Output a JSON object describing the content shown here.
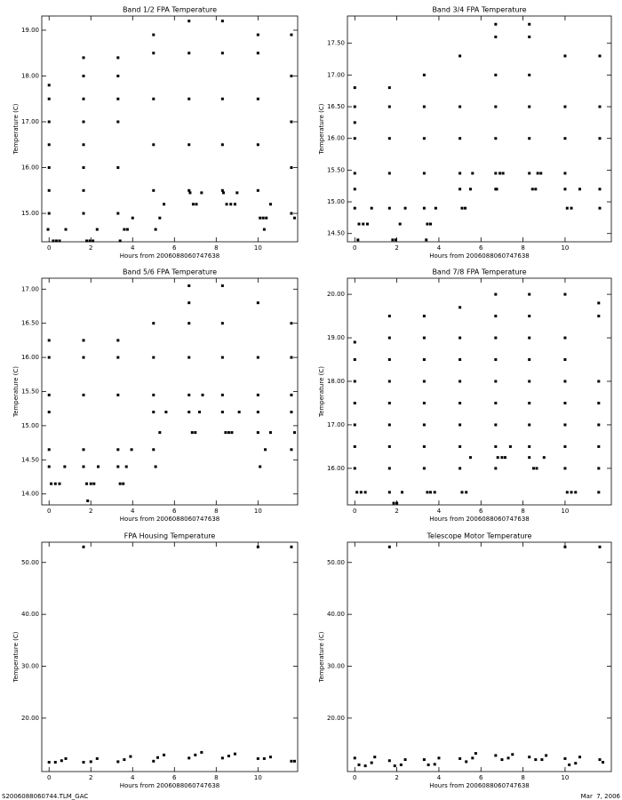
{
  "chart_data": [
    {
      "type": "scatter",
      "title": "Band 1/2 FPA Temperature",
      "xlabel": "Hours from 2006088060747638",
      "ylabel": "Temperature (C)",
      "xlim": [
        -0.35,
        11.9
      ],
      "ylim": [
        14.38,
        19.31
      ],
      "xticks": [
        0,
        2,
        4,
        6,
        8,
        10
      ],
      "yticks": [
        {
          "value": 15,
          "label": "15.00"
        },
        {
          "value": 16,
          "label": "16.00"
        },
        {
          "value": 17,
          "label": "17.00"
        },
        {
          "value": 18,
          "label": "18.00"
        },
        {
          "value": 19,
          "label": "19.00"
        }
      ],
      "series": [
        {
          "color": "#000000",
          "x": [
            0,
            0,
            0,
            0,
            0,
            0,
            0,
            0.2,
            0.35,
            0.5,
            -0.05,
            0.8,
            1.65,
            1.65,
            1.65,
            1.65,
            1.65,
            1.65,
            1.65,
            1.65,
            1.8,
            1.95,
            2.1,
            2.3,
            3.3,
            3.3,
            3.3,
            3.3,
            3.3,
            3.3,
            3.4,
            3.6,
            3.75,
            4.0,
            5,
            5,
            5,
            5,
            5,
            5.1,
            5.3,
            5.5,
            6.7,
            6.7,
            6.7,
            6.7,
            6.7,
            6.9,
            7.05,
            6.75,
            7.3,
            8.3,
            8.3,
            8.3,
            8.3,
            8.3,
            8.5,
            8.7,
            8.9,
            8.35,
            9.0,
            10,
            10,
            10,
            10,
            10,
            10.1,
            10.25,
            10.4,
            10.3,
            10.6,
            11.6,
            11.6,
            11.6,
            11.6,
            11.6,
            11.75
          ],
          "y": [
            15,
            15.5,
            16,
            16.5,
            17,
            17.5,
            17.8,
            14.4,
            14.4,
            14.4,
            14.65,
            14.65,
            15,
            15.5,
            16,
            16.5,
            17,
            17.5,
            18,
            18.4,
            14.4,
            14.4,
            14.4,
            14.65,
            15,
            16,
            17,
            17.5,
            18,
            18.4,
            14.4,
            14.65,
            14.65,
            14.9,
            15.5,
            16.5,
            17.5,
            18.5,
            18.9,
            14.65,
            14.9,
            15.2,
            15.5,
            16.5,
            17.5,
            18.5,
            19.2,
            15.2,
            15.2,
            15.45,
            15.45,
            15.5,
            16.5,
            17.5,
            18.5,
            19.2,
            15.2,
            15.2,
            15.2,
            15.45,
            15.45,
            15.5,
            16.5,
            17.5,
            18.5,
            18.9,
            14.9,
            14.9,
            14.9,
            14.65,
            15.2,
            15,
            16,
            17,
            18,
            18.9,
            14.9
          ]
        }
      ]
    },
    {
      "type": "scatter",
      "title": "Band 3/4 FPA Temperature",
      "xlabel": "Hours from 2006088060747638",
      "ylabel": "Temperature (C)",
      "xlim": [
        -0.35,
        12.2
      ],
      "ylim": [
        14.37,
        17.93
      ],
      "xticks": [
        0,
        2,
        4,
        6,
        8,
        10
      ],
      "yticks": [
        {
          "value": 14.5,
          "label": "14.50"
        },
        {
          "value": 15,
          "label": "15.00"
        },
        {
          "value": 15.5,
          "label": "15.50"
        },
        {
          "value": 16,
          "label": "16.00"
        },
        {
          "value": 16.5,
          "label": "16.50"
        },
        {
          "value": 17,
          "label": "17.00"
        },
        {
          "value": 17.5,
          "label": "17.50"
        }
      ],
      "series": [
        {
          "color": "#000000",
          "x": [
            0,
            0,
            0,
            0,
            0,
            0,
            0,
            0.2,
            0.4,
            0.6,
            0.15,
            0.8,
            1.65,
            1.65,
            1.65,
            1.65,
            1.65,
            1.8,
            1.95,
            2.15,
            2.4,
            3.3,
            3.3,
            3.3,
            3.3,
            3.3,
            3.45,
            3.6,
            3.4,
            3.85,
            5,
            5,
            5,
            5,
            5,
            5.1,
            5.25,
            5.5,
            5.6,
            6.7,
            6.7,
            6.7,
            6.7,
            6.7,
            6.7,
            6.7,
            6.9,
            7.05,
            6.75,
            8.3,
            8.3,
            8.3,
            8.3,
            8.3,
            8.3,
            8.45,
            8.6,
            8.7,
            8.85,
            10,
            10,
            10,
            10,
            10,
            10.1,
            10.3,
            10.7,
            11.65,
            11.65,
            11.65,
            11.65,
            11.65
          ],
          "y": [
            14.9,
            15.2,
            15.45,
            16,
            16.25,
            16.5,
            16.8,
            14.65,
            14.65,
            14.65,
            14.4,
            14.9,
            14.9,
            15.45,
            16,
            16.5,
            16.8,
            14.4,
            14.4,
            14.65,
            14.9,
            14.9,
            15.45,
            16,
            16.5,
            17,
            14.65,
            14.65,
            14.4,
            14.9,
            15.2,
            15.45,
            16,
            16.5,
            17.3,
            14.9,
            14.9,
            15.2,
            15.45,
            15.2,
            15.45,
            16,
            16.5,
            17,
            17.6,
            17.8,
            15.45,
            15.45,
            15.2,
            15.45,
            16,
            16.5,
            17,
            17.6,
            17.8,
            15.2,
            15.2,
            15.45,
            15.45,
            15.2,
            15.45,
            16,
            16.5,
            17.3,
            14.9,
            14.9,
            15.2,
            14.9,
            15.2,
            16,
            16.5,
            17.3
          ]
        }
      ]
    },
    {
      "type": "scatter",
      "title": "Band 5/6 FPA Temperature",
      "xlabel": "Hours from 2006088060747638",
      "ylabel": "Temperature (C)",
      "xlim": [
        -0.35,
        11.9
      ],
      "ylim": [
        13.84,
        17.16
      ],
      "xticks": [
        0,
        2,
        4,
        6,
        8,
        10
      ],
      "yticks": [
        {
          "value": 14,
          "label": "14.00"
        },
        {
          "value": 14.5,
          "label": "14.50"
        },
        {
          "value": 15,
          "label": "15.00"
        },
        {
          "value": 15.5,
          "label": "15.50"
        },
        {
          "value": 16,
          "label": "16.00"
        },
        {
          "value": 16.5,
          "label": "16.50"
        },
        {
          "value": 17,
          "label": "17.00"
        }
      ],
      "series": [
        {
          "color": "#000000",
          "x": [
            0,
            0,
            0,
            0,
            0,
            0,
            0.1,
            0.3,
            0.5,
            0.75,
            1.65,
            1.65,
            1.65,
            1.65,
            1.65,
            1.8,
            2.0,
            2.15,
            1.85,
            2.35,
            3.3,
            3.3,
            3.3,
            3.3,
            3.3,
            3.4,
            3.55,
            3.7,
            3.95,
            5,
            5,
            5,
            5,
            5,
            5.1,
            5.3,
            5.6,
            6.7,
            6.7,
            6.7,
            6.7,
            6.7,
            6.7,
            6.85,
            7.0,
            7.2,
            7.35,
            8.3,
            8.3,
            8.3,
            8.3,
            8.3,
            8.45,
            8.6,
            8.75,
            9.1,
            10,
            10,
            10,
            10,
            10,
            10.1,
            10.35,
            10.6,
            11.6,
            11.6,
            11.6,
            11.6,
            11.6,
            11.75
          ],
          "y": [
            14.4,
            14.65,
            15.2,
            15.45,
            16,
            16.25,
            14.15,
            14.15,
            14.15,
            14.4,
            14.4,
            14.65,
            15.45,
            16,
            16.25,
            14.15,
            14.15,
            14.15,
            13.9,
            14.4,
            14.4,
            14.65,
            15.45,
            16,
            16.25,
            14.15,
            14.15,
            14.4,
            14.65,
            14.65,
            15.2,
            15.45,
            16,
            16.5,
            14.4,
            14.9,
            15.2,
            15.2,
            15.45,
            16,
            16.5,
            16.8,
            17.05,
            14.9,
            14.9,
            15.2,
            15.45,
            15.2,
            15.45,
            16,
            16.5,
            17.05,
            14.9,
            14.9,
            14.9,
            15.2,
            14.9,
            15.2,
            15.45,
            16,
            16.8,
            14.4,
            14.65,
            14.9,
            14.65,
            15.2,
            15.45,
            16,
            16.5,
            14.9
          ]
        }
      ]
    },
    {
      "type": "scatter",
      "title": "Band 7/8 FPA Temperature",
      "xlabel": "Hours from 2006088060747638",
      "ylabel": "Temperature (C)",
      "xlim": [
        -0.35,
        12.2
      ],
      "ylim": [
        15.16,
        20.37
      ],
      "xticks": [
        0,
        2,
        4,
        6,
        8,
        10
      ],
      "yticks": [
        {
          "value": 16,
          "label": "16.00"
        },
        {
          "value": 17,
          "label": "17.00"
        },
        {
          "value": 18,
          "label": "18.00"
        },
        {
          "value": 19,
          "label": "19.00"
        },
        {
          "value": 20,
          "label": "20.00"
        }
      ],
      "series": [
        {
          "color": "#000000",
          "x": [
            0,
            0,
            0,
            0,
            0,
            0,
            0,
            0.1,
            0.3,
            0.5,
            1.65,
            1.65,
            1.65,
            1.65,
            1.65,
            1.65,
            1.65,
            1.65,
            1.85,
            2.0,
            1.65,
            2.25,
            3.3,
            3.3,
            3.3,
            3.3,
            3.3,
            3.3,
            3.3,
            3.3,
            3.45,
            3.6,
            3.8,
            5,
            5,
            5,
            5,
            5,
            5,
            5,
            5,
            5.1,
            5.3,
            5.5,
            6.7,
            6.7,
            6.7,
            6.7,
            6.7,
            6.7,
            6.7,
            6.7,
            6.7,
            6.8,
            7.0,
            7.15,
            7.4,
            8.3,
            8.3,
            8.3,
            8.3,
            8.3,
            8.3,
            8.3,
            8.3,
            8.3,
            8.5,
            8.65,
            9.0,
            10,
            10,
            10,
            10,
            10,
            10,
            10,
            10,
            10.1,
            10.3,
            10.5,
            11.6,
            11.6,
            11.6,
            11.6,
            11.6,
            11.6,
            11.6,
            11.6
          ],
          "y": [
            16,
            16.5,
            17,
            17.5,
            18,
            18.5,
            18.9,
            15.45,
            15.45,
            15.45,
            16,
            16.5,
            17,
            17.5,
            18,
            18.5,
            19,
            19.5,
            15.2,
            15.2,
            15.45,
            15.45,
            16,
            16.5,
            17,
            17.5,
            18,
            18.5,
            19,
            19.5,
            15.45,
            15.45,
            15.45,
            16,
            16.5,
            17,
            17.5,
            18,
            18.5,
            19,
            19.7,
            15.45,
            15.45,
            16.25,
            16,
            16.5,
            17,
            17.5,
            18,
            18.5,
            19,
            19.5,
            20,
            16.25,
            16.25,
            16.25,
            16.5,
            16.25,
            16.5,
            17,
            17.5,
            18,
            18.5,
            19,
            19.5,
            20,
            16,
            16,
            16.25,
            16,
            16.5,
            17,
            17.5,
            18,
            18.5,
            19,
            20,
            15.45,
            15.45,
            15.45,
            15.45,
            16,
            16.5,
            17,
            17.5,
            18,
            19.5,
            19.8
          ]
        }
      ]
    },
    {
      "type": "scatter",
      "title": "FPA Housing Temperature",
      "xlabel": "Hours from 2006088060747638",
      "ylabel": "Temperature (C)",
      "xlim": [
        -0.35,
        11.9
      ],
      "ylim": [
        9.7,
        53.9
      ],
      "xticks": [
        0,
        2,
        4,
        6,
        8,
        10
      ],
      "yticks": [
        {
          "value": 20,
          "label": "20.00"
        },
        {
          "value": 30,
          "label": "30.00"
        },
        {
          "value": 40,
          "label": "40.00"
        },
        {
          "value": 50,
          "label": "50.00"
        }
      ],
      "series": [
        {
          "color": "#000000",
          "x": [
            0,
            0.3,
            0.6,
            0.8,
            1.65,
            1.65,
            2.0,
            2.3,
            3.3,
            3.6,
            3.9,
            5.0,
            5.2,
            5.5,
            6.7,
            7.0,
            7.3,
            8.3,
            8.6,
            8.9,
            10.0,
            10.0,
            10.3,
            10.6,
            11.6,
            11.6,
            11.75
          ],
          "y": [
            11.5,
            11.5,
            11.8,
            12.2,
            53,
            11.5,
            11.6,
            12.2,
            11.6,
            12,
            12.6,
            11.7,
            12.4,
            12.9,
            12.3,
            12.9,
            13.4,
            12.3,
            12.7,
            13.1,
            53,
            12.2,
            12.2,
            12.5,
            53,
            11.7,
            11.7
          ]
        }
      ]
    },
    {
      "type": "scatter",
      "title": "Telescope Motor Temperature",
      "xlabel": "Hours from 2006088060747638",
      "ylabel": "Temperature (C)",
      "xlim": [
        -0.35,
        12.2
      ],
      "ylim": [
        9.7,
        53.9
      ],
      "xticks": [
        0,
        2,
        4,
        6,
        8,
        10
      ],
      "yticks": [
        {
          "value": 20,
          "label": "20.00"
        },
        {
          "value": 30,
          "label": "30.00"
        },
        {
          "value": 40,
          "label": "40.00"
        },
        {
          "value": 50,
          "label": "50.00"
        }
      ],
      "series": [
        {
          "color": "#000000",
          "x": [
            0,
            0.2,
            0.5,
            0.8,
            0.95,
            1.65,
            1.65,
            1.9,
            2.2,
            2.4,
            3.3,
            3.5,
            3.8,
            4.0,
            5.0,
            5.3,
            5.6,
            5.75,
            6.7,
            7.0,
            7.3,
            7.5,
            8.3,
            8.6,
            8.9,
            9.1,
            10.0,
            10.0,
            10.2,
            10.5,
            10.7,
            11.65,
            11.65,
            11.8
          ],
          "y": [
            12.3,
            11,
            10.8,
            11.4,
            12.5,
            53,
            11.8,
            10.8,
            11,
            12,
            12,
            11,
            11.1,
            12.3,
            12.2,
            11.6,
            12.3,
            13.2,
            12.8,
            12,
            12.3,
            13,
            12.5,
            12,
            12,
            12.8,
            53,
            12.2,
            11,
            11.3,
            12.5,
            53,
            12,
            11.5
          ]
        }
      ]
    }
  ],
  "footer": {
    "left": "S2006088060744.TLM_GAC",
    "right": "Mar  7, 2006"
  }
}
